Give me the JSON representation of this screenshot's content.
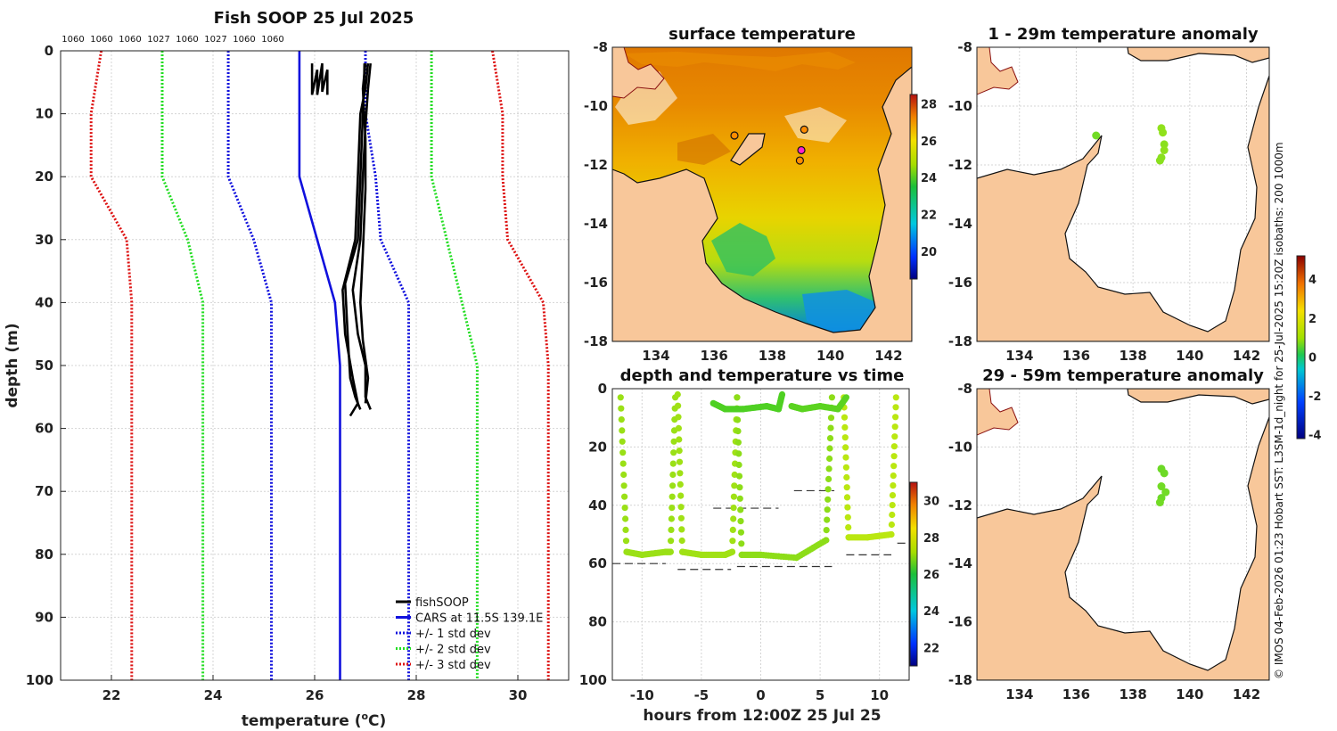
{
  "credit": "© IMOS 04-Feb-2026 01:23 Hobart SST: L3SM-1d_night for 25-Jul-2025 15:20Z isobaths: 200  1000m",
  "colors": {
    "fishsoop": "#000000",
    "cars": "#1010dd",
    "std1": "#1010dd",
    "std2": "#22dd22",
    "std3": "#dd1111",
    "land": "#f8c79a",
    "pink": "#ff22cc"
  },
  "chart_data": [
    {
      "id": "profile",
      "type": "line",
      "title": "Fish SOOP 25 Jul 2025",
      "top_labels": [
        "1060",
        "1060",
        "1060",
        "1027",
        "1060",
        "1027",
        "1060",
        "1060"
      ],
      "xlabel": "temperature (°C)",
      "xlabel_main": "temperature (",
      "xlabel_sup": "o",
      "xlabel_end": "C)",
      "ylabel": "depth (m)",
      "xlim": [
        21,
        31
      ],
      "ylim": [
        100,
        0
      ],
      "xticks": [
        22,
        24,
        26,
        28,
        30
      ],
      "yticks": [
        0,
        10,
        20,
        30,
        40,
        50,
        60,
        70,
        80,
        90,
        100
      ],
      "legend": [
        "fishSOOP",
        "CARS at 11.5S 139.1E",
        "+/- 1 std dev",
        "+/- 2 std dev",
        "+/- 3 std dev"
      ],
      "legend_position": "bottom-right",
      "series": [
        {
          "name": "CARS",
          "style": "solid",
          "color": "#1010dd",
          "depth": [
            0,
            20,
            40,
            50,
            57,
            100
          ],
          "temp": [
            25.7,
            25.7,
            26.4,
            26.5,
            26.5,
            26.5
          ]
        },
        {
          "name": "+1 std dev",
          "style": "dotted",
          "color": "#1010dd",
          "depth": [
            0,
            10,
            20,
            30,
            40,
            50,
            100
          ],
          "temp": [
            27.0,
            27.0,
            27.2,
            27.3,
            27.85,
            27.85,
            27.85
          ]
        },
        {
          "name": "-1 std dev",
          "style": "dotted",
          "color": "#1010dd",
          "depth": [
            0,
            10,
            20,
            30,
            40,
            50,
            100
          ],
          "temp": [
            24.3,
            24.3,
            24.3,
            24.8,
            25.15,
            25.15,
            25.15
          ]
        },
        {
          "name": "+2 std dev",
          "style": "dotted",
          "color": "#22dd22",
          "depth": [
            0,
            5,
            20,
            30,
            40,
            50,
            100
          ],
          "temp": [
            28.3,
            28.3,
            28.3,
            28.6,
            28.9,
            29.2,
            29.2
          ]
        },
        {
          "name": "-2 std dev",
          "style": "dotted",
          "color": "#22dd22",
          "depth": [
            0,
            5,
            20,
            30,
            40,
            50,
            100
          ],
          "temp": [
            23.0,
            23.0,
            23.0,
            23.5,
            23.8,
            23.8,
            23.8
          ]
        },
        {
          "name": "+3 std dev",
          "style": "dotted",
          "color": "#dd1111",
          "depth": [
            0,
            10,
            20,
            30,
            40,
            50,
            100
          ],
          "temp": [
            29.5,
            29.7,
            29.7,
            29.8,
            30.5,
            30.6,
            30.6
          ]
        },
        {
          "name": "-3 std dev",
          "style": "dotted",
          "color": "#dd1111",
          "depth": [
            0,
            10,
            20,
            30,
            40,
            50,
            100
          ],
          "temp": [
            21.8,
            21.6,
            21.6,
            22.3,
            22.4,
            22.4,
            22.4
          ]
        },
        {
          "name": "fishSOOP cast 1",
          "style": "solid",
          "color": "#000000",
          "depth": [
            2,
            6,
            10,
            20,
            30,
            37,
            45,
            52,
            55,
            57
          ],
          "temp": [
            26.98,
            26.97,
            26.95,
            26.9,
            26.85,
            26.6,
            26.65,
            26.7,
            26.8,
            26.9
          ]
        },
        {
          "name": "fishSOOP cast 2",
          "style": "solid",
          "color": "#000000",
          "depth": [
            2,
            6,
            10,
            20,
            30,
            38,
            45,
            52,
            56,
            58
          ],
          "temp": [
            27.05,
            27.0,
            26.9,
            26.85,
            26.8,
            26.55,
            26.6,
            26.75,
            26.85,
            26.7
          ]
        },
        {
          "name": "fishSOOP cast 3",
          "style": "solid",
          "color": "#000000",
          "depth": [
            2,
            6,
            12,
            20,
            30,
            38,
            45,
            50,
            55,
            57
          ],
          "temp": [
            27.1,
            27.05,
            27.0,
            26.95,
            26.9,
            26.75,
            26.85,
            27.0,
            27.0,
            27.1
          ]
        },
        {
          "name": "fishSOOP cast 4",
          "style": "solid",
          "color": "#000000",
          "depth": [
            2,
            6,
            14,
            22,
            32,
            40,
            46,
            52,
            56
          ],
          "temp": [
            27.0,
            26.95,
            27.0,
            27.0,
            26.95,
            26.9,
            26.95,
            27.05,
            27.0
          ]
        },
        {
          "name": "fishSOOP shallow",
          "style": "solid",
          "color": "#000000",
          "depth": [
            2,
            7,
            3,
            7,
            2,
            6.5,
            3,
            7
          ],
          "temp": [
            25.95,
            25.95,
            26.05,
            26.05,
            26.15,
            26.15,
            26.25,
            26.25
          ]
        }
      ]
    },
    {
      "id": "surface_temperature",
      "type": "heatmap",
      "title": "surface temperature",
      "xticks": [
        134,
        136,
        138,
        140,
        142
      ],
      "yticks": [
        -8,
        -10,
        -12,
        -14,
        -16,
        -18
      ],
      "xlim": [
        132.5,
        142.8
      ],
      "ylim": [
        -18,
        -8
      ],
      "colorbar": {
        "range": [
          18.5,
          28.5
        ],
        "ticks": [
          20,
          22,
          24,
          26,
          28
        ]
      },
      "markers": [
        {
          "lon": 136.7,
          "lat": -11.0,
          "color": "#ff8c00"
        },
        {
          "lon": 139.1,
          "lat": -10.8,
          "color": "#ff8c00"
        },
        {
          "lon": 139.0,
          "lat": -11.5,
          "color": "#ff22cc"
        },
        {
          "lon": 138.95,
          "lat": -11.85,
          "color": "#ff8c00"
        }
      ]
    },
    {
      "id": "depth_temp_time",
      "type": "scatter",
      "title": "depth and temperature vs time",
      "xlabel": "hours from 12:00Z 25 Jul 25",
      "xlim": [
        -12.5,
        12.5
      ],
      "ylim": [
        100,
        0
      ],
      "xticks": [
        -10,
        -5,
        0,
        5,
        10
      ],
      "yticks": [
        0,
        20,
        40,
        60,
        80,
        100
      ],
      "colorbar": {
        "range": [
          21,
          31
        ],
        "ticks": [
          22,
          24,
          26,
          28,
          30
        ]
      },
      "casts": [
        {
          "t": [
            -11.8,
            -11.3,
            -10,
            -8,
            -7.6,
            -7.2
          ],
          "depth": [
            3,
            56,
            57,
            56,
            56,
            3
          ],
          "temp": 27.8
        },
        {
          "t": [
            -7.0,
            -6.6,
            -5,
            -3,
            -2.4,
            -2.0
          ],
          "depth": [
            2,
            56,
            57,
            57,
            56,
            3
          ],
          "temp": 27.9
        },
        {
          "t": [
            -2.0,
            -1.6,
            0,
            3,
            5.5,
            6.0
          ],
          "depth": [
            3,
            57,
            57,
            58,
            52,
            3
          ],
          "temp": 27.6
        },
        {
          "t": [
            7.0,
            7.4,
            9,
            11.0,
            11.4
          ],
          "depth": [
            3,
            51,
            51,
            50,
            3
          ],
          "temp": 28.3
        },
        {
          "t": [
            -4.0,
            -3.0,
            -1.5,
            0.5,
            1.5,
            1.8
          ],
          "depth": [
            5,
            7,
            7,
            6,
            7,
            2
          ],
          "temp": 26.6
        },
        {
          "t": [
            2.6,
            3.5,
            5.0,
            6.5,
            7.2
          ],
          "depth": [
            6,
            7,
            6,
            7,
            3
          ],
          "temp": 26.8
        }
      ],
      "bottom_depth_segments": [
        {
          "t": [
            -12.5,
            -8.0
          ],
          "depth": 60
        },
        {
          "t": [
            -7.0,
            -2.5
          ],
          "depth": 62
        },
        {
          "t": [
            -2.0,
            6.0
          ],
          "depth": 61
        },
        {
          "t": [
            7.2,
            11.0
          ],
          "depth": 57
        },
        {
          "t": [
            -4.0,
            1.5
          ],
          "depth": 41
        },
        {
          "t": [
            2.8,
            6.2
          ],
          "depth": 35
        },
        {
          "t": [
            11.5,
            12.5
          ],
          "depth": 53
        }
      ]
    },
    {
      "id": "anomaly_1_29m",
      "type": "scatter",
      "title": "1 - 29m temperature anomaly",
      "xticks": [
        134,
        136,
        138,
        140,
        142
      ],
      "yticks": [
        -8,
        -10,
        -12,
        -14,
        -16,
        -18
      ],
      "xlim": [
        132.5,
        142.8
      ],
      "ylim": [
        -18,
        -8
      ],
      "points": [
        {
          "lon": 136.7,
          "lat": -11.0,
          "anom": 0.4
        },
        {
          "lon": 139.0,
          "lat": -10.75,
          "anom": 0.9
        },
        {
          "lon": 139.05,
          "lat": -10.9,
          "anom": 0.9
        },
        {
          "lon": 139.1,
          "lat": -11.3,
          "anom": 0.8
        },
        {
          "lon": 139.1,
          "lat": -11.5,
          "anom": 0.9
        },
        {
          "lon": 139.0,
          "lat": -11.75,
          "anom": 0.8
        },
        {
          "lon": 138.95,
          "lat": -11.85,
          "anom": 0.8
        }
      ]
    },
    {
      "id": "anomaly_29_59m",
      "type": "scatter",
      "title": "29 - 59m temperature anomaly",
      "xticks": [
        134,
        136,
        138,
        140,
        142
      ],
      "yticks": [
        -8,
        -10,
        -12,
        -14,
        -16,
        -18
      ],
      "xlim": [
        132.5,
        142.8
      ],
      "ylim": [
        -18,
        -8
      ],
      "colorbar": {
        "range": [
          -4.2,
          5.2
        ],
        "ticks": [
          -4,
          -2,
          0,
          2,
          4
        ]
      },
      "points": [
        {
          "lon": 139.0,
          "lat": -10.75,
          "anom": 0.3
        },
        {
          "lon": 139.1,
          "lat": -10.9,
          "anom": 0.3
        },
        {
          "lon": 139.0,
          "lat": -11.35,
          "anom": 0.4
        },
        {
          "lon": 139.15,
          "lat": -11.55,
          "anom": 0.4
        },
        {
          "lon": 139.0,
          "lat": -11.75,
          "anom": 0.3
        },
        {
          "lon": 138.95,
          "lat": -11.9,
          "anom": 0.4
        }
      ]
    }
  ]
}
